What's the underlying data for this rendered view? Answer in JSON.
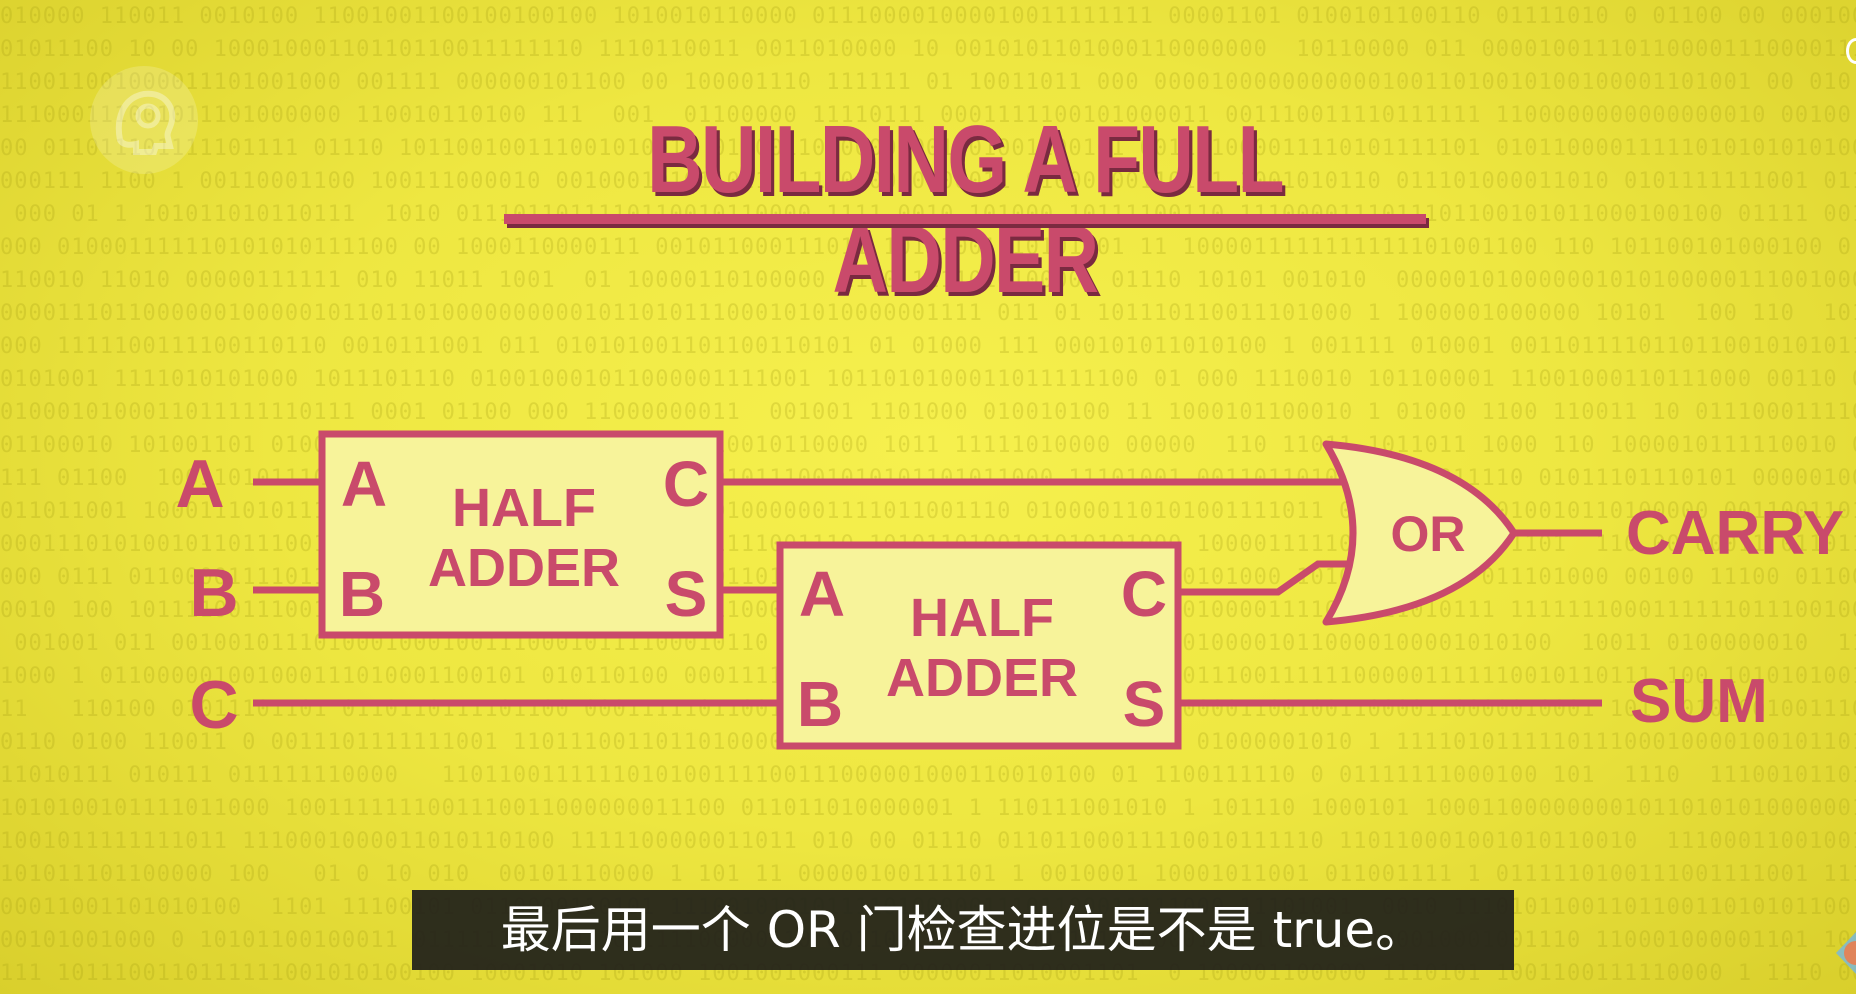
{
  "title": "BUILDING A FULL ADDER",
  "inputs": {
    "a": "A",
    "b": "B",
    "c": "C"
  },
  "half_adder_1": {
    "label_line1": "HALF",
    "label_line2": "ADDER",
    "in_a": "A",
    "in_b": "B",
    "out_c": "C",
    "out_s": "S"
  },
  "half_adder_2": {
    "label_line1": "HALF",
    "label_line2": "ADDER",
    "in_a": "A",
    "in_b": "B",
    "out_c": "C",
    "out_s": "S"
  },
  "or_gate": {
    "label": "OR"
  },
  "outputs": {
    "carry": "CARRY",
    "sum": "SUM"
  },
  "subtitle": "最后用一个 OR 门检查进位是不是 true。",
  "colors": {
    "background": "#eee741",
    "accent": "#c94a6b",
    "box_fill": "#f7f39a",
    "subtitle_bg": "#1e1e1a"
  },
  "icons": {
    "logo": "crash-course-logo-icon",
    "corner": "channel-badge-icon"
  }
}
